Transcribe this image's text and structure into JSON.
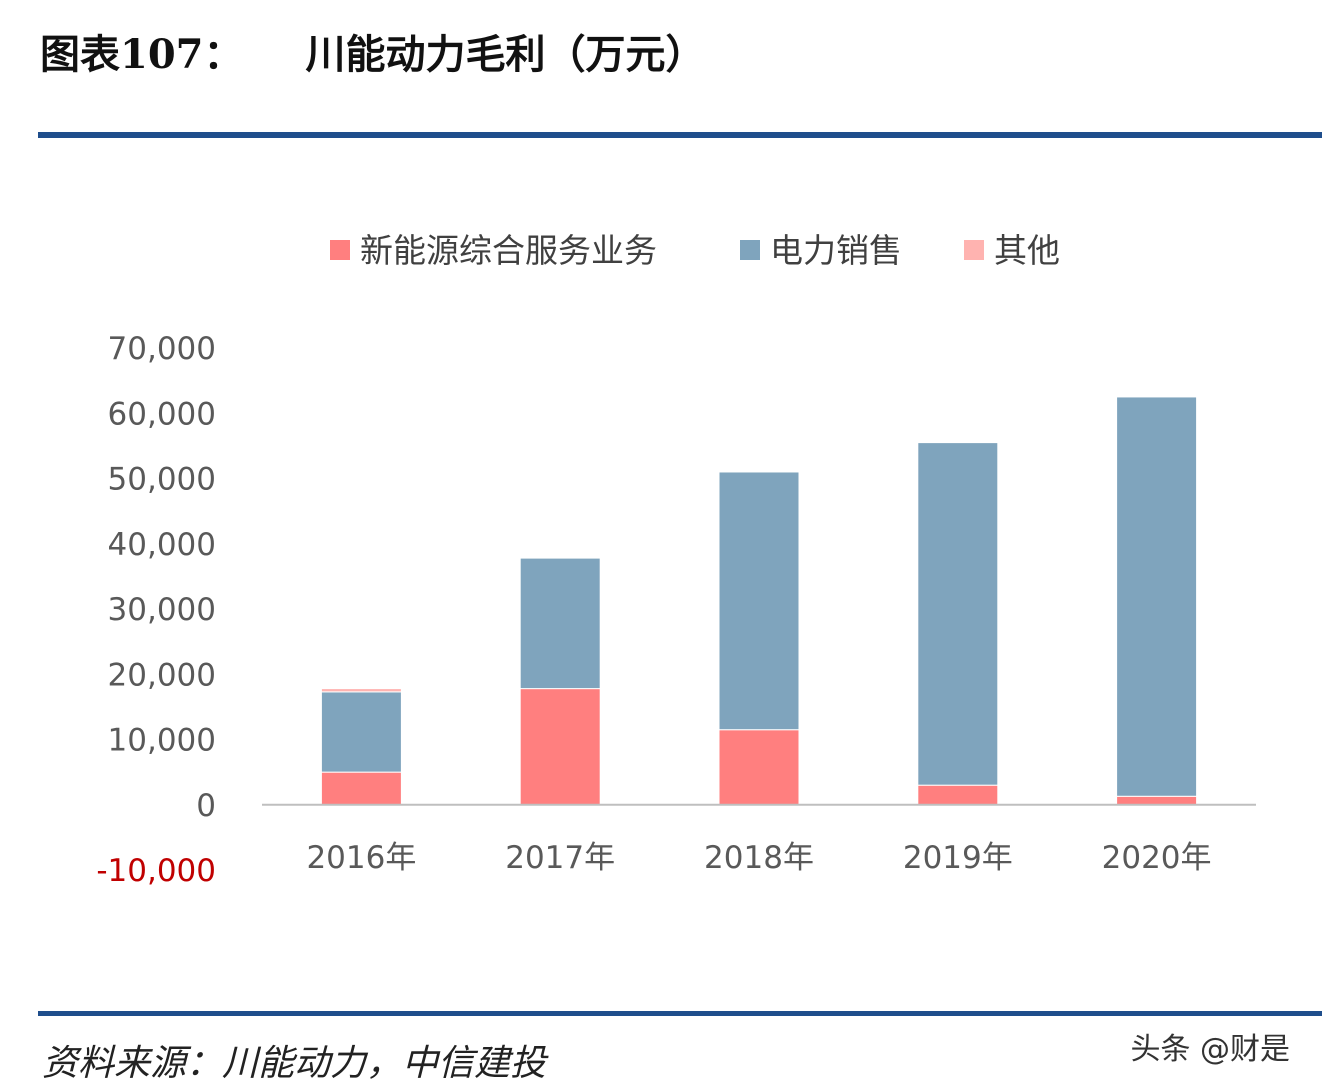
{
  "header": {
    "figure_no": "图表107：",
    "title": "川能动力毛利（万元）"
  },
  "footer": {
    "source": "资料来源：川能动力，中信建投",
    "watermark": "头条 @财是"
  },
  "colors": {
    "rule": "#1f4e8c",
    "negative_tick": "#c00000"
  },
  "chart_data": {
    "type": "bar",
    "stacked": true,
    "categories": [
      "2016年",
      "2017年",
      "2018年",
      "2019年",
      "2020年"
    ],
    "series": [
      {
        "name": "新能源综合服务业务",
        "color": "#ff7f7f",
        "values": [
          5000,
          17800,
          11500,
          3000,
          1300
        ]
      },
      {
        "name": "电力销售",
        "color": "#7fa4bd",
        "values": [
          12300,
          20000,
          39500,
          52500,
          61200
        ]
      },
      {
        "name": "其他",
        "color": "#ffb3b0",
        "values": [
          500,
          0,
          0,
          0,
          0
        ]
      }
    ],
    "ylim": [
      -10000,
      70000
    ],
    "yticks": [
      70000,
      60000,
      50000,
      40000,
      30000,
      20000,
      10000,
      0,
      -10000
    ],
    "ytick_labels": [
      "70,000",
      "60,000",
      "50,000",
      "40,000",
      "30,000",
      "20,000",
      "10,000",
      "0",
      "-10,000"
    ],
    "legend_position": "top",
    "grid": false
  }
}
